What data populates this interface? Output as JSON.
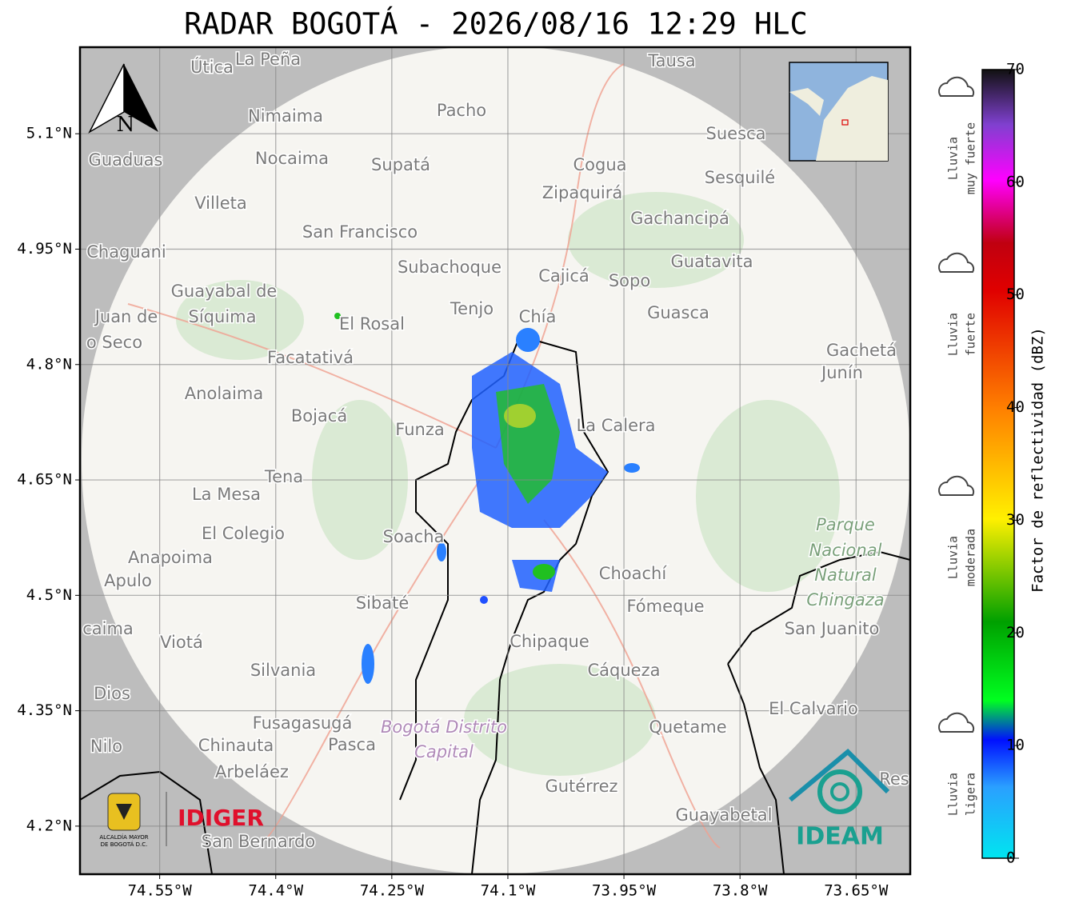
{
  "title": "RADAR BOGOTÁ - 2026/08/16 12:29 HLC",
  "map": {
    "xlim": [
      -74.653,
      -73.58
    ],
    "ylim": [
      4.1375,
      5.2125
    ],
    "xticks": [
      {
        "value": -74.55,
        "label": "74.55°W"
      },
      {
        "value": -74.4,
        "label": "74.4°W"
      },
      {
        "value": -74.25,
        "label": "74.25°W"
      },
      {
        "value": -74.1,
        "label": "74.1°W"
      },
      {
        "value": -73.95,
        "label": "73.95°W"
      },
      {
        "value": -73.8,
        "label": "73.8°W"
      },
      {
        "value": -73.65,
        "label": "73.65°W"
      }
    ],
    "yticks": [
      {
        "value": 5.1,
        "label": "5.1°N"
      },
      {
        "value": 4.95,
        "label": "4.95°N"
      },
      {
        "value": 4.8,
        "label": "4.8°N"
      },
      {
        "value": 4.65,
        "label": "4.65°N"
      },
      {
        "value": 4.5,
        "label": "4.5°N"
      },
      {
        "value": 4.35,
        "label": "4.35°N"
      },
      {
        "value": 4.2,
        "label": "4.2°N"
      }
    ],
    "grid": true,
    "north_label": "N",
    "places": [
      "Útica",
      "La Peña",
      "Tausa",
      "Pacho",
      "Nimaima",
      "Guaduas",
      "Nocaima",
      "Supatá",
      "Cogua",
      "Suesca",
      "Sesquilé",
      "Zipaquirá",
      "Villeta",
      "Gachancipá",
      "San Francisco",
      "Chaguani",
      "Guatavita",
      "Subachoque",
      "Cajicá",
      "Sopo",
      "Guayabal de",
      "Síquima",
      "Juan de",
      "o Seco",
      "Tenjo",
      "Chía",
      "Guasca",
      "El Rosal",
      "Facatativá",
      "Gachetá",
      "Junín",
      "Anolaima",
      "Bojacá",
      "Funza",
      "La Calera",
      "Tena",
      "La Mesa",
      "El Colegio",
      "Soacha",
      "Parque",
      "Nacional",
      "Natural",
      "Chingaza",
      "Anapoima",
      "Apulo",
      "Choachí",
      "Sibaté",
      "Fómeque",
      "San Juanito",
      "caima",
      "Viotá",
      "Chipaque",
      "Silvania",
      "Cáqueza",
      "Dios",
      "El Calvario",
      "Fusagasugá",
      "Bogotá Distrito",
      "Capital",
      "Quetame",
      "Nilo",
      "Chinauta",
      "Pasca",
      "Arbeláez",
      "Gutérrez",
      "Guayabetal",
      "San Bernardo",
      "Res"
    ]
  },
  "colorbar": {
    "label": "Factor de reflectividad (dBZ)",
    "lim": [
      0,
      70
    ],
    "ticks": [
      0,
      10,
      20,
      30,
      40,
      50,
      60,
      70
    ]
  },
  "legend": [
    [
      "Lluvia",
      "muy fuerte"
    ],
    [
      "Lluvia",
      "fuerte"
    ],
    [
      "Lluvia",
      "moderada"
    ],
    [
      "Lluvia",
      "ligera"
    ]
  ],
  "logos": {
    "alcaldia": [
      "ALCALDÍA MAYOR",
      "DE BOGOTÁ D.C."
    ],
    "idiger": "IDIGER",
    "ideam": "IDEAM"
  }
}
